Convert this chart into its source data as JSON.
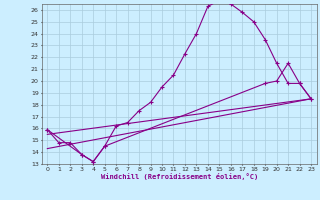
{
  "title": "",
  "xlabel": "Windchill (Refroidissement éolien,°C)",
  "bg_color": "#cceeff",
  "grid_color": "#aaccdd",
  "line_color": "#880088",
  "xlim": [
    -0.5,
    23.5
  ],
  "ylim": [
    13,
    26.5
  ],
  "xticks": [
    0,
    1,
    2,
    3,
    4,
    5,
    6,
    7,
    8,
    9,
    10,
    11,
    12,
    13,
    14,
    15,
    16,
    17,
    18,
    19,
    20,
    21,
    22,
    23
  ],
  "yticks": [
    13,
    14,
    15,
    16,
    17,
    18,
    19,
    20,
    21,
    22,
    23,
    24,
    25,
    26
  ],
  "series_main": {
    "x": [
      0,
      1,
      2,
      3,
      4,
      5,
      6,
      7,
      8,
      9,
      10,
      11,
      12,
      13,
      14,
      15,
      16,
      17,
      18,
      19,
      20,
      21,
      22,
      23
    ],
    "y": [
      15.9,
      14.8,
      14.8,
      13.8,
      13.2,
      14.5,
      16.2,
      16.5,
      17.5,
      18.2,
      19.5,
      20.5,
      22.3,
      24.0,
      26.3,
      26.8,
      26.5,
      25.8,
      25.0,
      23.5,
      21.5,
      19.8,
      19.8,
      18.5
    ]
  },
  "series_lower": {
    "x": [
      0,
      3,
      4,
      5,
      19,
      20,
      21,
      22,
      23
    ],
    "y": [
      15.9,
      13.8,
      13.2,
      14.5,
      19.8,
      20.0,
      21.5,
      19.8,
      18.5
    ]
  },
  "line1": {
    "x": [
      0,
      23
    ],
    "y": [
      14.3,
      18.5
    ]
  },
  "line2": {
    "x": [
      0,
      23
    ],
    "y": [
      15.5,
      18.5
    ]
  }
}
